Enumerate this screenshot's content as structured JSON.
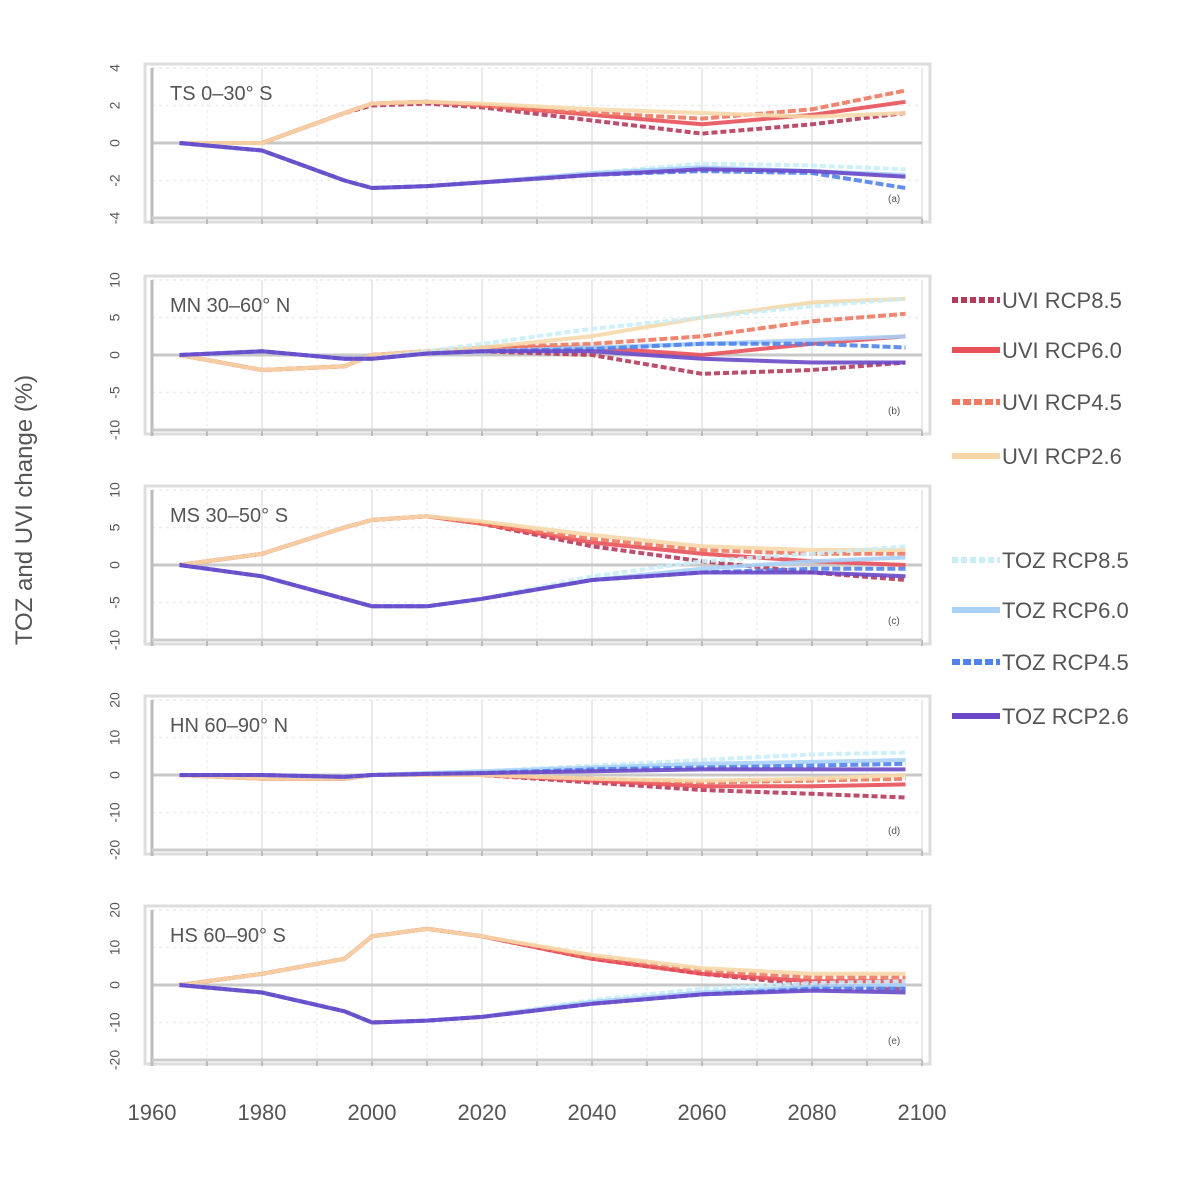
{
  "chart_data": {
    "type": "line",
    "ylabel": "TOZ and UVI change (%)",
    "xlabel": "",
    "xlim": [
      1960,
      2100
    ],
    "xticks": [
      1960,
      1980,
      2000,
      2020,
      2040,
      2060,
      2080,
      2100
    ],
    "x": [
      1965,
      1980,
      1995,
      2000,
      2010,
      2020,
      2040,
      2060,
      2080,
      2097
    ],
    "grid": true,
    "legend_placement": "right",
    "legend": [
      {
        "name": "UVI RCP8.5",
        "color": "#b8385a",
        "dash": "6,3"
      },
      {
        "name": "UVI RCP6.0",
        "color": "#e8505a",
        "dash": ""
      },
      {
        "name": "UVI RCP4.5",
        "color": "#f2785e",
        "dash": "8,3"
      },
      {
        "name": "UVI RCP2.6",
        "color": "#f6d8a8",
        "dash": ""
      },
      {
        "name": "TOZ RCP8.5",
        "color": "#c8eefa",
        "dash": "6,3"
      },
      {
        "name": "TOZ RCP6.0",
        "color": "#a8d2f8",
        "dash": ""
      },
      {
        "name": "TOZ RCP4.5",
        "color": "#4f82ef",
        "dash": "8,3"
      },
      {
        "name": "TOZ RCP2.6",
        "color": "#6a48c8",
        "dash": ""
      }
    ],
    "panels": [
      {
        "title": "TS 0–30° S",
        "tag": "(a)",
        "ylim": [
          -4,
          4
        ],
        "yticks": [
          4,
          2,
          0,
          -2,
          -4
        ],
        "series": [
          [
            0,
            0,
            1.6,
            2.0,
            2.1,
            1.9,
            1.2,
            0.5,
            1.0,
            1.6
          ],
          [
            0,
            0,
            1.6,
            2.1,
            2.2,
            2.0,
            1.5,
            1.0,
            1.5,
            2.2
          ],
          [
            0,
            0,
            1.6,
            2.1,
            2.2,
            2.0,
            1.6,
            1.3,
            1.8,
            2.8
          ],
          [
            0,
            0,
            1.6,
            2.1,
            2.2,
            2.1,
            1.8,
            1.6,
            1.4,
            1.6
          ],
          [
            0,
            -0.4,
            -2.0,
            -2.4,
            -2.3,
            -2.1,
            -1.6,
            -1.1,
            -1.2,
            -1.4
          ],
          [
            0,
            -0.4,
            -2.0,
            -2.4,
            -2.3,
            -2.1,
            -1.6,
            -1.3,
            -1.5,
            -1.7
          ],
          [
            0,
            -0.4,
            -2.0,
            -2.4,
            -2.3,
            -2.1,
            -1.7,
            -1.5,
            -1.6,
            -2.4
          ],
          [
            0,
            -0.4,
            -2.0,
            -2.4,
            -2.3,
            -2.1,
            -1.7,
            -1.4,
            -1.5,
            -1.8
          ]
        ]
      },
      {
        "title": "MN 30–60° N",
        "tag": "(b)",
        "ylim": [
          -10,
          10
        ],
        "yticks": [
          10,
          5,
          0,
          -5,
          -10
        ],
        "series": [
          [
            0,
            -2,
            -1.5,
            0,
            0.5,
            0.5,
            0,
            -2.5,
            -2,
            -1
          ],
          [
            0,
            -2,
            -1.5,
            0,
            0.5,
            1.0,
            1.0,
            0,
            1.5,
            2.5
          ],
          [
            0,
            -2,
            -1.5,
            0,
            0.5,
            1.0,
            1.5,
            2.5,
            4.5,
            5.5
          ],
          [
            0,
            -2,
            -1.5,
            0,
            0.5,
            1.0,
            2.5,
            5.0,
            7.0,
            7.5
          ],
          [
            0,
            0.5,
            -0.5,
            -0.5,
            0.5,
            1.5,
            3.5,
            5.0,
            6.5,
            7.5
          ],
          [
            0,
            0.5,
            -0.5,
            -0.5,
            0.2,
            0.5,
            1.0,
            1.5,
            2.0,
            2.5
          ],
          [
            0,
            0.5,
            -0.5,
            -0.5,
            0.2,
            0.5,
            0.8,
            1.5,
            1.5,
            1.0
          ],
          [
            0,
            0.5,
            -0.5,
            -0.5,
            0.2,
            0.5,
            0.5,
            -0.5,
            -1.0,
            -1.0
          ]
        ]
      },
      {
        "title": "MS 30–50° S",
        "tag": "(c)",
        "ylim": [
          -10,
          10
        ],
        "yticks": [
          10,
          5,
          0,
          -5,
          -10
        ],
        "series": [
          [
            0,
            1.5,
            5.0,
            6.0,
            6.5,
            5.5,
            2.5,
            0.5,
            -1.0,
            -2.0
          ],
          [
            0,
            1.5,
            5.0,
            6.0,
            6.5,
            5.5,
            3.0,
            1.5,
            0.5,
            0.0
          ],
          [
            0,
            1.5,
            5.0,
            6.0,
            6.5,
            5.5,
            3.5,
            2.0,
            1.5,
            1.5
          ],
          [
            0,
            1.5,
            5.0,
            6.0,
            6.5,
            5.8,
            4.0,
            2.5,
            2.0,
            2.0
          ],
          [
            0,
            -1.5,
            -4.5,
            -5.5,
            -5.5,
            -4.5,
            -1.5,
            0.5,
            1.5,
            2.5
          ],
          [
            0,
            -1.5,
            -4.5,
            -5.5,
            -5.5,
            -4.5,
            -2.0,
            -0.5,
            0.5,
            1.0
          ],
          [
            0,
            -1.5,
            -4.5,
            -5.5,
            -5.5,
            -4.5,
            -2.0,
            -1.0,
            -0.5,
            -0.5
          ],
          [
            0,
            -1.5,
            -4.5,
            -5.5,
            -5.5,
            -4.5,
            -2.0,
            -1.0,
            -1.0,
            -1.5
          ]
        ]
      },
      {
        "title": "HN 60–90° N",
        "tag": "(d)",
        "ylim": [
          -20,
          20
        ],
        "yticks": [
          20,
          10,
          0,
          -10,
          -20
        ],
        "series": [
          [
            0,
            -1,
            -1,
            0,
            0,
            0,
            -2,
            -4,
            -5,
            -6
          ],
          [
            0,
            -1,
            -1,
            0,
            0,
            0,
            -1.5,
            -3,
            -3,
            -2.5
          ],
          [
            0,
            -1,
            -1,
            0,
            0,
            0,
            -1,
            -2,
            -1.5,
            -1
          ],
          [
            0,
            -1,
            -1,
            0,
            0,
            0,
            -1,
            -1.5,
            -1,
            0
          ],
          [
            0,
            0,
            -0.5,
            0,
            0.5,
            1,
            2.5,
            4,
            5.5,
            6
          ],
          [
            0,
            0,
            -0.5,
            0,
            0.5,
            1,
            2,
            3,
            3.5,
            4
          ],
          [
            0,
            0,
            -0.5,
            0,
            0.3,
            0.5,
            1.5,
            2,
            2.5,
            3
          ],
          [
            0,
            0,
            -0.5,
            0,
            0.3,
            0.5,
            1,
            1.5,
            1.5,
            1.5
          ]
        ]
      },
      {
        "title": "HS 60–90° S",
        "tag": "(e)",
        "ylim": [
          -20,
          20
        ],
        "yticks": [
          20,
          10,
          0,
          -10,
          -20
        ],
        "series": [
          [
            0,
            3,
            7,
            13,
            15,
            13,
            7,
            3,
            0,
            -1
          ],
          [
            0,
            3,
            7,
            13,
            15,
            13,
            7,
            3,
            1,
            1
          ],
          [
            0,
            3,
            7,
            13,
            15,
            13,
            7.5,
            4,
            2,
            2
          ],
          [
            0,
            3,
            7,
            13,
            15,
            13,
            8,
            4.5,
            3,
            3
          ],
          [
            0,
            -2,
            -7,
            -10,
            -9.5,
            -8.5,
            -4,
            -1,
            0.5,
            1
          ],
          [
            0,
            -2,
            -7,
            -10,
            -9.5,
            -8.5,
            -4.5,
            -2,
            -0.5,
            0
          ],
          [
            0,
            -2,
            -7,
            -10,
            -9.5,
            -8.5,
            -5,
            -2.5,
            -1,
            -1
          ],
          [
            0,
            -2,
            -7,
            -10,
            -9.5,
            -8.5,
            -5,
            -2.5,
            -1.5,
            -2
          ]
        ]
      }
    ]
  }
}
